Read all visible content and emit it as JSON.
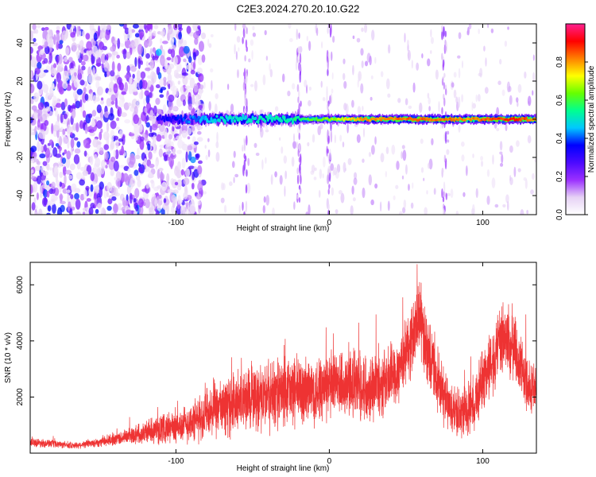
{
  "page": {
    "title": "C2E3.2024.270.20.10.G22"
  },
  "chart_data": [
    {
      "type": "heatmap",
      "title": "C2E3.2024.270.20.10.G22",
      "xlabel": "Height of straight line (km)",
      "ylabel": "Frequency (Hz)",
      "xlim": [
        -195,
        135
      ],
      "ylim": [
        -50,
        50
      ],
      "xticks": [
        -100,
        0,
        100
      ],
      "yticks": [
        -40,
        -20,
        0,
        20,
        40
      ],
      "grid": false,
      "colorbar": {
        "label": "Normalized spectral amplitude",
        "range": [
          0,
          1
        ],
        "ticks": [
          0.0,
          0.2,
          0.4,
          0.6,
          0.8
        ],
        "tick_labels": [
          "0.0",
          "0.2",
          "0.4",
          "0.6",
          "0.8"
        ],
        "colors": [
          "#ffffff",
          "#e6d2f5",
          "#9b30ff",
          "#4b0aff",
          "#0000ff",
          "#00c8ff",
          "#00ff90",
          "#66ff00",
          "#ffff00",
          "#ff8000",
          "#ff0000",
          "#ff2090"
        ]
      },
      "features": {
        "noise_region_x": [
          -195,
          -82
        ],
        "noise_frequency_range": [
          -50,
          50
        ],
        "noise_amplitude_level": 0.15,
        "signal_line_frequency": 0,
        "signal_start_x": -112,
        "signal_amplitude_profile": [
          {
            "x": -112,
            "level": 0.3
          },
          {
            "x": -82,
            "level": 0.45
          },
          {
            "x": -60,
            "level": 0.5
          },
          {
            "x": -40,
            "level": 0.5
          },
          {
            "x": -20,
            "level": 0.55
          },
          {
            "x": 0,
            "level": 0.65
          },
          {
            "x": 20,
            "level": 0.8
          },
          {
            "x": 60,
            "level": 0.85
          },
          {
            "x": 90,
            "level": 0.8
          },
          {
            "x": 120,
            "level": 0.9
          },
          {
            "x": 135,
            "level": 0.8
          }
        ],
        "vertical_streak_x": [
          -55,
          0,
          -20,
          75
        ]
      }
    },
    {
      "type": "line",
      "xlabel": "Height of straight line (km)",
      "ylabel": "SNR (10 * v/v)",
      "xlim": [
        -195,
        135
      ],
      "ylim": [
        0,
        6800
      ],
      "xticks": [
        -100,
        0,
        100
      ],
      "yticks": [
        2000,
        4000,
        6000
      ],
      "grid": false,
      "color": "#ee3333",
      "series": [
        {
          "x": [
            -195,
            -185,
            -175,
            -165,
            -155,
            -145,
            -135,
            -125,
            -115,
            -105,
            -95,
            -85,
            -75,
            -65,
            -55,
            -45,
            -35,
            -25,
            -15,
            -5,
            5,
            15,
            25,
            35,
            45,
            50,
            55,
            58,
            60,
            65,
            70,
            75,
            80,
            85,
            90,
            95,
            100,
            105,
            110,
            115,
            118,
            120,
            125,
            130,
            135
          ],
          "values": [
            400,
            350,
            300,
            280,
            350,
            450,
            550,
            700,
            800,
            900,
            1000,
            1200,
            1500,
            1700,
            1900,
            2000,
            2100,
            2200,
            2200,
            2300,
            2400,
            2400,
            2400,
            2500,
            3000,
            3600,
            4200,
            5000,
            4600,
            3500,
            2600,
            1900,
            1500,
            1400,
            1500,
            1900,
            2600,
            3200,
            3700,
            4200,
            3800,
            3900,
            3000,
            2400,
            2200
          ],
          "noise": [
            150,
            150,
            120,
            120,
            150,
            200,
            250,
            350,
            450,
            550,
            650,
            800,
            950,
            1050,
            1150,
            1200,
            1250,
            1250,
            1250,
            1250,
            1250,
            1250,
            1200,
            1200,
            1200,
            1200,
            1300,
            1400,
            1300,
            1200,
            1100,
            1000,
            900,
            900,
            950,
            1000,
            1100,
            1200,
            1300,
            1400,
            1300,
            1300,
            1100,
            1000,
            900
          ]
        }
      ]
    }
  ]
}
